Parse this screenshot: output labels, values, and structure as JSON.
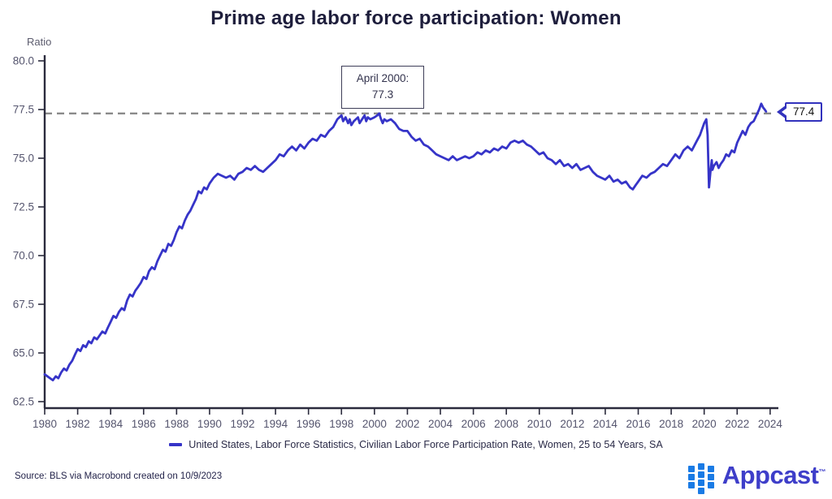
{
  "title": "Prime age labor force participation: Women",
  "y_axis_label": "Ratio",
  "annotation": {
    "line1": "April 2000:",
    "line2": "77.3"
  },
  "callout": {
    "value": "77.4"
  },
  "legend": {
    "label": "United States, Labor Force Statistics, Civilian Labor Force Participation Rate, Women, 25 to 54 Years, SA"
  },
  "source": "Source: BLS via Macrobond created on 10/9/2023",
  "logo": {
    "text": "Appcast",
    "tm": "™"
  },
  "colors": {
    "line": "#3634c8",
    "dashed_reference": "#8a8a8a",
    "title_text": "#1e1e3c",
    "axis_line": "#2b2b3d",
    "tick_text": "#55556e",
    "logo_squares": "#1a7be5",
    "logo_text": "#3e3ec9",
    "callout_border": "#3232bd"
  },
  "chart_data": {
    "type": "line",
    "title": "Prime age labor force participation: Women",
    "xlabel": "",
    "ylabel": "Ratio",
    "xlim": [
      1980,
      2024.5
    ],
    "ylim": [
      62.5,
      80.0
    ],
    "x_ticks": [
      1980,
      1982,
      1984,
      1986,
      1988,
      1990,
      1992,
      1994,
      1996,
      1998,
      2000,
      2002,
      2004,
      2006,
      2008,
      2010,
      2012,
      2014,
      2016,
      2018,
      2020,
      2022,
      2024
    ],
    "y_ticks": [
      62.5,
      65.0,
      67.5,
      70.0,
      72.5,
      75.0,
      77.5,
      80.0
    ],
    "grid": false,
    "legend_position": "bottom",
    "reference_line": {
      "value": 77.3,
      "style": "dashed",
      "label": "April 2000: 77.3"
    },
    "last_point": {
      "x": 2023.75,
      "value": 77.4
    },
    "series": [
      {
        "name": "United States, Labor Force Statistics, Civilian Labor Force Participation Rate, Women, 25 to 54 Years, SA",
        "color": "#3634c8",
        "points": [
          [
            1980.0,
            63.9
          ],
          [
            1980.17,
            63.8
          ],
          [
            1980.33,
            63.7
          ],
          [
            1980.5,
            63.6
          ],
          [
            1980.67,
            63.8
          ],
          [
            1980.83,
            63.7
          ],
          [
            1981.0,
            64.0
          ],
          [
            1981.17,
            64.2
          ],
          [
            1981.33,
            64.1
          ],
          [
            1981.5,
            64.4
          ],
          [
            1981.67,
            64.6
          ],
          [
            1981.83,
            64.9
          ],
          [
            1982.0,
            65.2
          ],
          [
            1982.17,
            65.1
          ],
          [
            1982.33,
            65.4
          ],
          [
            1982.5,
            65.3
          ],
          [
            1982.67,
            65.6
          ],
          [
            1982.83,
            65.5
          ],
          [
            1983.0,
            65.8
          ],
          [
            1983.17,
            65.7
          ],
          [
            1983.33,
            65.9
          ],
          [
            1983.5,
            66.1
          ],
          [
            1983.67,
            66.0
          ],
          [
            1983.83,
            66.3
          ],
          [
            1984.0,
            66.6
          ],
          [
            1984.17,
            66.9
          ],
          [
            1984.33,
            66.8
          ],
          [
            1984.5,
            67.1
          ],
          [
            1984.67,
            67.3
          ],
          [
            1984.83,
            67.2
          ],
          [
            1985.0,
            67.7
          ],
          [
            1985.17,
            68.0
          ],
          [
            1985.33,
            67.9
          ],
          [
            1985.5,
            68.2
          ],
          [
            1985.67,
            68.4
          ],
          [
            1985.83,
            68.6
          ],
          [
            1986.0,
            68.9
          ],
          [
            1986.17,
            68.8
          ],
          [
            1986.33,
            69.2
          ],
          [
            1986.5,
            69.4
          ],
          [
            1986.67,
            69.3
          ],
          [
            1986.83,
            69.7
          ],
          [
            1987.0,
            70.0
          ],
          [
            1987.17,
            70.3
          ],
          [
            1987.33,
            70.2
          ],
          [
            1987.5,
            70.6
          ],
          [
            1987.67,
            70.5
          ],
          [
            1987.83,
            70.8
          ],
          [
            1988.0,
            71.2
          ],
          [
            1988.17,
            71.5
          ],
          [
            1988.33,
            71.4
          ],
          [
            1988.5,
            71.8
          ],
          [
            1988.67,
            72.1
          ],
          [
            1988.83,
            72.3
          ],
          [
            1989.0,
            72.6
          ],
          [
            1989.17,
            72.9
          ],
          [
            1989.33,
            73.3
          ],
          [
            1989.5,
            73.2
          ],
          [
            1989.67,
            73.5
          ],
          [
            1989.83,
            73.4
          ],
          [
            1990.0,
            73.7
          ],
          [
            1990.25,
            74.0
          ],
          [
            1990.5,
            74.2
          ],
          [
            1990.75,
            74.1
          ],
          [
            1991.0,
            74.0
          ],
          [
            1991.25,
            74.1
          ],
          [
            1991.5,
            73.9
          ],
          [
            1991.75,
            74.2
          ],
          [
            1992.0,
            74.3
          ],
          [
            1992.25,
            74.5
          ],
          [
            1992.5,
            74.4
          ],
          [
            1992.75,
            74.6
          ],
          [
            1993.0,
            74.4
          ],
          [
            1993.25,
            74.3
          ],
          [
            1993.5,
            74.5
          ],
          [
            1993.75,
            74.7
          ],
          [
            1994.0,
            74.9
          ],
          [
            1994.25,
            75.2
          ],
          [
            1994.5,
            75.1
          ],
          [
            1994.75,
            75.4
          ],
          [
            1995.0,
            75.6
          ],
          [
            1995.25,
            75.4
          ],
          [
            1995.5,
            75.7
          ],
          [
            1995.75,
            75.5
          ],
          [
            1996.0,
            75.8
          ],
          [
            1996.25,
            76.0
          ],
          [
            1996.5,
            75.9
          ],
          [
            1996.75,
            76.2
          ],
          [
            1997.0,
            76.1
          ],
          [
            1997.25,
            76.4
          ],
          [
            1997.5,
            76.6
          ],
          [
            1997.75,
            77.0
          ],
          [
            1998.0,
            77.2
          ],
          [
            1998.1,
            76.9
          ],
          [
            1998.25,
            77.1
          ],
          [
            1998.4,
            76.8
          ],
          [
            1998.5,
            77.0
          ],
          [
            1998.6,
            76.7
          ],
          [
            1998.75,
            76.9
          ],
          [
            1999.0,
            77.1
          ],
          [
            1999.1,
            76.8
          ],
          [
            1999.25,
            77.0
          ],
          [
            1999.4,
            77.2
          ],
          [
            1999.5,
            76.9
          ],
          [
            1999.6,
            77.1
          ],
          [
            1999.75,
            77.0
          ],
          [
            2000.0,
            77.1
          ],
          [
            2000.17,
            77.2
          ],
          [
            2000.29,
            77.3
          ],
          [
            2000.4,
            77.0
          ],
          [
            2000.5,
            76.8
          ],
          [
            2000.6,
            77.0
          ],
          [
            2000.75,
            76.9
          ],
          [
            2001.0,
            77.0
          ],
          [
            2001.25,
            76.8
          ],
          [
            2001.5,
            76.5
          ],
          [
            2001.75,
            76.4
          ],
          [
            2002.0,
            76.4
          ],
          [
            2002.25,
            76.1
          ],
          [
            2002.5,
            75.9
          ],
          [
            2002.75,
            76.0
          ],
          [
            2003.0,
            75.7
          ],
          [
            2003.25,
            75.6
          ],
          [
            2003.5,
            75.4
          ],
          [
            2003.75,
            75.2
          ],
          [
            2004.0,
            75.1
          ],
          [
            2004.25,
            75.0
          ],
          [
            2004.5,
            74.9
          ],
          [
            2004.75,
            75.1
          ],
          [
            2005.0,
            74.9
          ],
          [
            2005.25,
            75.0
          ],
          [
            2005.5,
            75.1
          ],
          [
            2005.75,
            75.0
          ],
          [
            2006.0,
            75.1
          ],
          [
            2006.25,
            75.3
          ],
          [
            2006.5,
            75.2
          ],
          [
            2006.75,
            75.4
          ],
          [
            2007.0,
            75.3
          ],
          [
            2007.25,
            75.5
          ],
          [
            2007.5,
            75.4
          ],
          [
            2007.75,
            75.6
          ],
          [
            2008.0,
            75.5
          ],
          [
            2008.25,
            75.8
          ],
          [
            2008.5,
            75.9
          ],
          [
            2008.75,
            75.8
          ],
          [
            2009.0,
            75.9
          ],
          [
            2009.25,
            75.7
          ],
          [
            2009.5,
            75.6
          ],
          [
            2009.75,
            75.4
          ],
          [
            2010.0,
            75.2
          ],
          [
            2010.25,
            75.3
          ],
          [
            2010.5,
            75.0
          ],
          [
            2010.75,
            74.9
          ],
          [
            2011.0,
            74.7
          ],
          [
            2011.25,
            74.9
          ],
          [
            2011.5,
            74.6
          ],
          [
            2011.75,
            74.7
          ],
          [
            2012.0,
            74.5
          ],
          [
            2012.25,
            74.7
          ],
          [
            2012.5,
            74.4
          ],
          [
            2012.75,
            74.5
          ],
          [
            2013.0,
            74.6
          ],
          [
            2013.25,
            74.3
          ],
          [
            2013.5,
            74.1
          ],
          [
            2013.75,
            74.0
          ],
          [
            2014.0,
            73.9
          ],
          [
            2014.25,
            74.1
          ],
          [
            2014.5,
            73.8
          ],
          [
            2014.75,
            73.9
          ],
          [
            2015.0,
            73.7
          ],
          [
            2015.25,
            73.8
          ],
          [
            2015.5,
            73.5
          ],
          [
            2015.67,
            73.4
          ],
          [
            2015.83,
            73.6
          ],
          [
            2016.0,
            73.8
          ],
          [
            2016.25,
            74.1
          ],
          [
            2016.5,
            74.0
          ],
          [
            2016.75,
            74.2
          ],
          [
            2017.0,
            74.3
          ],
          [
            2017.25,
            74.5
          ],
          [
            2017.5,
            74.7
          ],
          [
            2017.75,
            74.6
          ],
          [
            2018.0,
            74.9
          ],
          [
            2018.25,
            75.2
          ],
          [
            2018.5,
            75.0
          ],
          [
            2018.75,
            75.4
          ],
          [
            2019.0,
            75.6
          ],
          [
            2019.25,
            75.4
          ],
          [
            2019.5,
            75.8
          ],
          [
            2019.75,
            76.2
          ],
          [
            2020.0,
            76.8
          ],
          [
            2020.13,
            77.0
          ],
          [
            2020.21,
            76.2
          ],
          [
            2020.29,
            73.5
          ],
          [
            2020.38,
            74.3
          ],
          [
            2020.46,
            74.9
          ],
          [
            2020.5,
            74.4
          ],
          [
            2020.58,
            74.6
          ],
          [
            2020.75,
            74.8
          ],
          [
            2020.88,
            74.5
          ],
          [
            2021.0,
            74.7
          ],
          [
            2021.17,
            74.9
          ],
          [
            2021.33,
            75.2
          ],
          [
            2021.5,
            75.1
          ],
          [
            2021.67,
            75.4
          ],
          [
            2021.83,
            75.3
          ],
          [
            2022.0,
            75.8
          ],
          [
            2022.17,
            76.1
          ],
          [
            2022.33,
            76.4
          ],
          [
            2022.5,
            76.2
          ],
          [
            2022.67,
            76.6
          ],
          [
            2022.83,
            76.8
          ],
          [
            2023.0,
            76.9
          ],
          [
            2023.17,
            77.2
          ],
          [
            2023.33,
            77.5
          ],
          [
            2023.46,
            77.8
          ],
          [
            2023.58,
            77.6
          ],
          [
            2023.67,
            77.5
          ],
          [
            2023.75,
            77.4
          ]
        ]
      }
    ]
  }
}
